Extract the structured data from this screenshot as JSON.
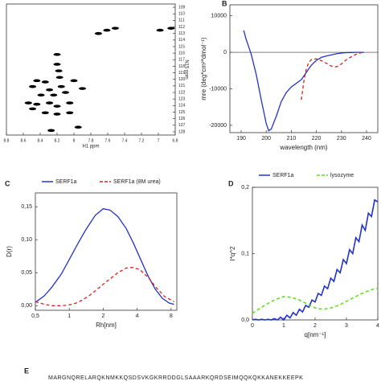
{
  "chart_data": [
    {
      "type": "scatter",
      "xlabel": "H1 ppm",
      "ylabel": "N15 ppm",
      "color": "#000000",
      "x": [
        7.61,
        7.51,
        7.71,
        6.98,
        6.85,
        8.2,
        8.2,
        8.18,
        8.17,
        8.44,
        8.49,
        8.34,
        8.29,
        8.15,
        8.39,
        8.24,
        8.1,
        8.54,
        8.44,
        8.29,
        8.2,
        8.05,
        8.49,
        8.34,
        8.2,
        7.95,
        8.27,
        8.0,
        7.9,
        8.05
      ],
      "values": [
        112.5,
        112.2,
        113.0,
        112.5,
        112.2,
        116.2,
        117.7,
        118.7,
        119.7,
        120.2,
        121.1,
        120.4,
        121.6,
        121.1,
        122.4,
        122.4,
        122.0,
        123.6,
        123.8,
        123.6,
        124.1,
        123.6,
        124.5,
        125.1,
        125.3,
        127.3,
        127.8,
        120.2,
        121.4,
        125.1
      ],
      "xlim": [
        8.8,
        6.8
      ],
      "xticks": [
        8.8,
        8.6,
        8.4,
        8.2,
        8.0,
        7.8,
        7.6,
        7.4,
        7.2,
        7.0,
        6.8
      ],
      "ylim": [
        128.5,
        108.5
      ],
      "yticks": [
        109,
        110,
        111,
        112,
        113,
        114,
        115,
        116,
        117,
        118,
        119,
        120,
        121,
        122,
        123,
        124,
        125,
        126,
        127,
        128
      ],
      "y_axis_side": "right"
    },
    {
      "type": "line",
      "panel_label": "B",
      "xlabel": "wavelength (nm)",
      "ylabel": "mre (deg*cm²*dmol⁻¹)",
      "xlim": [
        185.5,
        244.5
      ],
      "xticks": [
        190,
        200,
        210,
        220,
        230,
        240
      ],
      "ylim": [
        -22000,
        13000
      ],
      "yticks": [
        -20000,
        -10000,
        0,
        10000
      ],
      "zero_line": true,
      "series": [
        {
          "color": "#2233cc",
          "dashed": false,
          "x": [
            191,
            192,
            193,
            194,
            196,
            198,
            200,
            201,
            202,
            204,
            206,
            208,
            210,
            212,
            214,
            216,
            218,
            220,
            222,
            224,
            226,
            228,
            230,
            232,
            234,
            236,
            238,
            239
          ],
          "values": [
            6000,
            3500,
            1500,
            -500,
            -6000,
            -13000,
            -19500,
            -21500,
            -21000,
            -17500,
            -13500,
            -11000,
            -9500,
            -8500,
            -7500,
            -5500,
            -3500,
            -2200,
            -1400,
            -1000,
            -700,
            -400,
            -200,
            -100,
            -50,
            0,
            0,
            0
          ]
        },
        {
          "color": "#dd2222",
          "dashed": true,
          "x": [
            214,
            215,
            216,
            217,
            218,
            220,
            222,
            224,
            226,
            228,
            230,
            232,
            234,
            236,
            238,
            239
          ],
          "values": [
            -13000,
            -8000,
            -4500,
            -2800,
            -2000,
            -1800,
            -2300,
            -3000,
            -3800,
            -4000,
            -3200,
            -2000,
            -1200,
            -500,
            -100,
            0
          ]
        }
      ]
    },
    {
      "type": "line",
      "panel_label": "C",
      "xlabel": "Rh[nm]",
      "ylabel": "D(r)",
      "xlog": true,
      "xlim": [
        0.5,
        9
      ],
      "xticks": [
        {
          "value": 0.5,
          "label": "0,5"
        },
        1,
        2,
        4,
        8
      ],
      "ylim": [
        -0.007,
        0.171
      ],
      "yticks": [
        {
          "value": 0,
          "label": "0,00"
        },
        {
          "value": 0.05,
          "label": "0,05"
        },
        {
          "value": 0.1,
          "label": "0,10"
        },
        {
          "value": 0.15,
          "label": "0,15"
        }
      ],
      "series": [
        {
          "name": "SERF1a",
          "color": "#2233cc",
          "dashed": false,
          "x": [
            0.5,
            0.6,
            0.7,
            0.85,
            1,
            1.2,
            1.4,
            1.7,
            2,
            2.3,
            2.7,
            3.2,
            3.7,
            4.3,
            5,
            5.8,
            6.7,
            7.7,
            8.5
          ],
          "values": [
            0.005,
            0.015,
            0.028,
            0.048,
            0.07,
            0.095,
            0.115,
            0.137,
            0.147,
            0.145,
            0.135,
            0.117,
            0.095,
            0.07,
            0.045,
            0.025,
            0.011,
            0.004,
            0.002
          ]
        },
        {
          "name": "SERF1a (8M urea)",
          "color": "#dd2222",
          "dashed": true,
          "x": [
            0.5,
            0.6,
            0.7,
            0.85,
            1,
            1.2,
            1.5,
            1.8,
            2.2,
            2.7,
            3.2,
            3.6,
            4.2,
            5,
            6,
            7,
            8.5
          ],
          "values": [
            0.006,
            0.002,
            0.0,
            0.0,
            0.001,
            0.005,
            0.015,
            0.026,
            0.038,
            0.05,
            0.057,
            0.058,
            0.055,
            0.043,
            0.026,
            0.014,
            0.006
          ]
        }
      ]
    },
    {
      "type": "line",
      "panel_label": "D",
      "xlabel": "q[nm⁻¹]",
      "ylabel": "I*q^2",
      "xlim": [
        0,
        4
      ],
      "xticks": [
        0,
        1,
        2,
        3,
        4
      ],
      "ylim": [
        0,
        0.2
      ],
      "yticks": [
        {
          "value": 0,
          "label": "0,0"
        },
        {
          "value": 0.1,
          "label": "0,1"
        },
        {
          "value": 0.2,
          "label": "0,2"
        }
      ],
      "series": [
        {
          "name": "SERF1a",
          "color": "#2233cc",
          "dashed": false,
          "width": 1.6,
          "x": [
            0,
            0.1,
            0.2,
            0.3,
            0.4,
            0.5,
            0.6,
            0.7,
            0.8,
            0.9,
            1.0,
            1.1,
            1.2,
            1.3,
            1.4,
            1.5,
            1.6,
            1.7,
            1.8,
            1.9,
            2.0,
            2.1,
            2.2,
            2.3,
            2.4,
            2.5,
            2.6,
            2.7,
            2.8,
            2.9,
            3.0,
            3.1,
            3.2,
            3.3,
            3.4,
            3.5,
            3.6,
            3.7,
            3.8,
            3.9,
            4.0
          ],
          "values": [
            0.0,
            0.001,
            0.0,
            0.001,
            0.0,
            0.001,
            0.0,
            0.002,
            0.0,
            0.004,
            0.0,
            0.007,
            0.003,
            0.011,
            0.007,
            0.016,
            0.012,
            0.022,
            0.019,
            0.03,
            0.027,
            0.04,
            0.037,
            0.051,
            0.047,
            0.063,
            0.058,
            0.076,
            0.071,
            0.091,
            0.085,
            0.106,
            0.1,
            0.124,
            0.118,
            0.143,
            0.135,
            0.161,
            0.156,
            0.181,
            0.178
          ]
        },
        {
          "name": "lysozyme",
          "color": "#66dd22",
          "dashed": true,
          "width": 1.6,
          "x": [
            0,
            0.25,
            0.5,
            0.75,
            1,
            1.25,
            1.5,
            1.75,
            2,
            2.25,
            2.5,
            2.75,
            3,
            3.25,
            3.5,
            3.75,
            4
          ],
          "values": [
            0.01,
            0.018,
            0.025,
            0.031,
            0.035,
            0.034,
            0.03,
            0.024,
            0.018,
            0.016,
            0.018,
            0.022,
            0.028,
            0.034,
            0.04,
            0.045,
            0.048
          ]
        }
      ]
    }
  ],
  "panel_e": {
    "label": "E",
    "sequence": "MARGNQRELARQKNMKKQSDSVKGKRRDDGLSAAARKQRDSEIMQQKQKKANEKKEEPK"
  }
}
